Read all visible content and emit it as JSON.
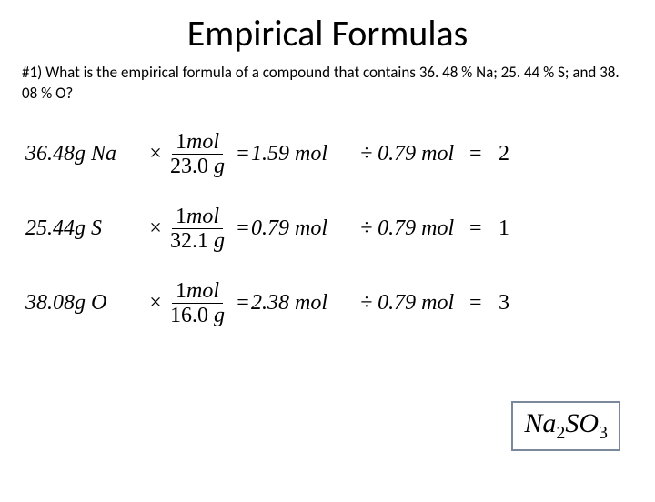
{
  "title": "Empirical Formulas",
  "question": "#1) What is the empirical formula of a compound that contains 36. 48 % Na; 25. 44 % S; and 38. 08 % O?",
  "rows": [
    {
      "mass": "36.48",
      "massUnit": "g Na",
      "times": "×",
      "fracNum": "1",
      "fracNumUnit": "mol",
      "fracDen": "23.0",
      "fracDenUnit": "g",
      "eq1": "=",
      "mid": "1.59",
      "midUnit": "mol",
      "divSym": "÷",
      "divVal": "0.79",
      "divUnit": "mol",
      "eq2": "=",
      "res": "2"
    },
    {
      "mass": "25.44",
      "massUnit": "g S",
      "times": "×",
      "fracNum": "1",
      "fracNumUnit": "mol",
      "fracDen": "32.1",
      "fracDenUnit": "g",
      "eq1": "=",
      "mid": " 0.79",
      "midUnit": "mol",
      "divSym": "÷",
      "divVal": "0.79",
      "divUnit": "mol",
      "eq2": "=",
      "res": "1"
    },
    {
      "mass": "38.08",
      "massUnit": "g O",
      "times": "×",
      "fracNum": "1",
      "fracNumUnit": "mol",
      "fracDen": "16.0",
      "fracDenUnit": "g",
      "eq1": "=",
      "mid": "2.38",
      "midUnit": "mol",
      "divSym": "÷",
      "divVal": "0.79",
      "divUnit": "mol",
      "eq2": "=",
      "res": "3"
    }
  ],
  "answer": {
    "e1": "Na",
    "s1": "2",
    "e2": "SO",
    "s2": "3"
  }
}
